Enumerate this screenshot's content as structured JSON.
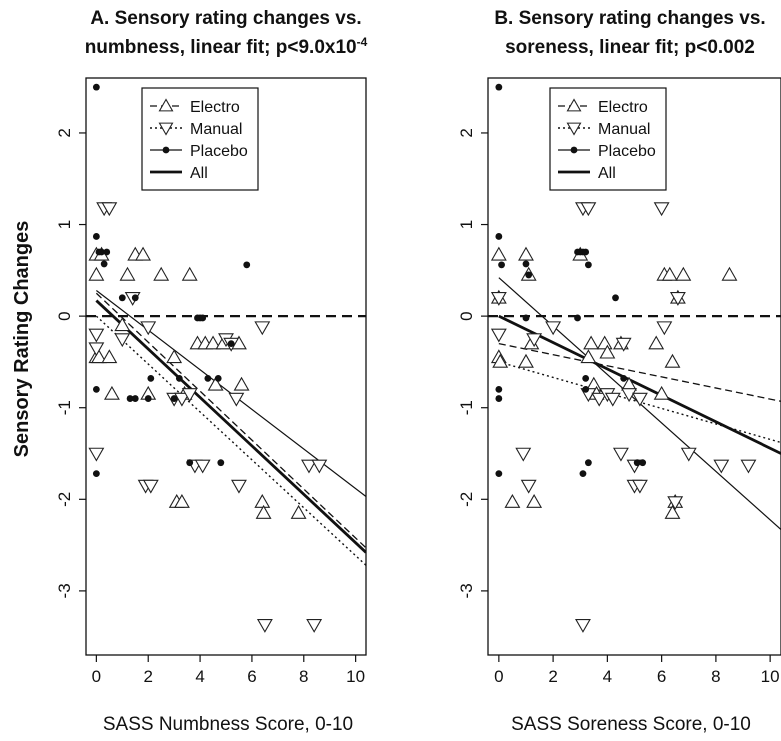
{
  "figure": {
    "ylabel": "Sensory Rating Changes"
  },
  "chart_data": [
    {
      "type": "scatter",
      "id": "A",
      "title_lines": [
        "A. Sensory rating changes vs.",
        "numbness, linear fit; p<9.0x10",
        "-4"
      ],
      "xlabel": "SASS Numbness Score, 0-10",
      "ylabel": "Sensory Rating Changes",
      "xlim": [
        -0.4,
        10.4
      ],
      "ylim": [
        -3.7,
        2.6
      ],
      "xticks": [
        0,
        2,
        4,
        6,
        8,
        10
      ],
      "yticks": [
        -3,
        -2,
        -1,
        0,
        1,
        2
      ],
      "xtick_labels": [
        "0",
        "2",
        "4",
        "6",
        "8",
        "10"
      ],
      "ytick_labels": [
        "-3",
        "-2",
        "-1",
        "0",
        "1",
        "2"
      ],
      "reference_line_y": 0,
      "legend": {
        "position": "top-center",
        "entries": [
          {
            "label": "Electro",
            "marker": "triangle-up",
            "line": "dashed"
          },
          {
            "label": "Manual",
            "marker": "triangle-down",
            "line": "dotted"
          },
          {
            "label": "Placebo",
            "marker": "dot",
            "line": "thin-solid"
          },
          {
            "label": "All",
            "marker": "none",
            "line": "thick-solid"
          }
        ]
      },
      "series": [
        {
          "name": "Electro",
          "marker": "triangle-up",
          "points": [
            [
              0,
              0.67
            ],
            [
              0,
              0.45
            ],
            [
              0,
              -0.45
            ],
            [
              0.1,
              -0.45
            ],
            [
              0.2,
              0.67
            ],
            [
              0.5,
              -0.45
            ],
            [
              0.6,
              -0.85
            ],
            [
              1.0,
              -0.1
            ],
            [
              1.2,
              0.45
            ],
            [
              1.5,
              0.67
            ],
            [
              1.8,
              0.67
            ],
            [
              2.0,
              -0.85
            ],
            [
              2.5,
              0.45
            ],
            [
              3.0,
              -0.45
            ],
            [
              3.1,
              -2.03
            ],
            [
              3.3,
              -2.03
            ],
            [
              3.4,
              -0.85
            ],
            [
              3.6,
              0.45
            ],
            [
              3.9,
              -0.3
            ],
            [
              4.2,
              -0.3
            ],
            [
              4.5,
              -0.3
            ],
            [
              4.6,
              -0.75
            ],
            [
              4.9,
              -0.3
            ],
            [
              5.5,
              -0.3
            ],
            [
              5.6,
              -0.75
            ],
            [
              6.4,
              -2.03
            ],
            [
              6.45,
              -2.15
            ],
            [
              7.8,
              -2.15
            ]
          ]
        },
        {
          "name": "Manual",
          "marker": "triangle-down",
          "points": [
            [
              0,
              -0.2
            ],
            [
              0,
              -0.35
            ],
            [
              0,
              -1.5
            ],
            [
              0.3,
              1.18
            ],
            [
              0.5,
              1.18
            ],
            [
              1.0,
              -0.25
            ],
            [
              1.4,
              0.2
            ],
            [
              1.9,
              -1.85
            ],
            [
              2.1,
              -1.85
            ],
            [
              2.0,
              -0.12
            ],
            [
              3.0,
              -0.9
            ],
            [
              3.3,
              -0.9
            ],
            [
              3.6,
              -0.85
            ],
            [
              3.8,
              -1.63
            ],
            [
              4.1,
              -1.63
            ],
            [
              5.0,
              -0.25
            ],
            [
              5.2,
              -0.3
            ],
            [
              5.4,
              -0.9
            ],
            [
              5.5,
              -1.85
            ],
            [
              6.4,
              -0.12
            ],
            [
              6.5,
              -3.37
            ],
            [
              8.2,
              -1.63
            ],
            [
              8.4,
              -3.37
            ],
            [
              8.6,
              -1.63
            ]
          ]
        },
        {
          "name": "Placebo",
          "marker": "dot",
          "points": [
            [
              0,
              2.5
            ],
            [
              0,
              0.87
            ],
            [
              0,
              -0.8
            ],
            [
              0,
              -1.72
            ],
            [
              0.1,
              0.7
            ],
            [
              0.2,
              0.7
            ],
            [
              0.3,
              0.57
            ],
            [
              0.4,
              0.7
            ],
            [
              1.0,
              0.2
            ],
            [
              1.3,
              -0.9
            ],
            [
              1.5,
              -0.9
            ],
            [
              1.5,
              0.2
            ],
            [
              2.0,
              -0.9
            ],
            [
              2.1,
              -0.68
            ],
            [
              3.0,
              -0.9
            ],
            [
              3.2,
              -0.68
            ],
            [
              3.6,
              -1.6
            ],
            [
              3.9,
              -0.02
            ],
            [
              4.0,
              -0.02
            ],
            [
              4.1,
              -0.02
            ],
            [
              4.3,
              -0.68
            ],
            [
              4.7,
              -0.68
            ],
            [
              4.8,
              -1.6
            ],
            [
              5.2,
              -0.3
            ],
            [
              5.8,
              0.56
            ]
          ]
        }
      ],
      "fits": [
        {
          "name": "Electro",
          "style": "dashed",
          "x": [
            0,
            10.4
          ],
          "y": [
            0.25,
            -2.53
          ]
        },
        {
          "name": "Manual",
          "style": "dotted",
          "x": [
            0,
            10.4
          ],
          "y": [
            0.0,
            -2.72
          ]
        },
        {
          "name": "Placebo",
          "style": "thin-solid",
          "x": [
            0,
            10.4
          ],
          "y": [
            0.28,
            -1.97
          ]
        },
        {
          "name": "All",
          "style": "thick-solid",
          "x": [
            0,
            10.4
          ],
          "y": [
            0.17,
            -2.58
          ]
        }
      ]
    },
    {
      "type": "scatter",
      "id": "B",
      "title_lines": [
        "B. Sensory rating changes vs.",
        "soreness, linear fit; p<0.002",
        ""
      ],
      "xlabel": "SASS Soreness Score, 0-10",
      "ylabel": "",
      "xlim": [
        -0.4,
        10.4
      ],
      "ylim": [
        -3.7,
        2.6
      ],
      "xticks": [
        0,
        2,
        4,
        6,
        8,
        10
      ],
      "yticks": [
        -3,
        -2,
        -1,
        0,
        1,
        2
      ],
      "xtick_labels": [
        "0",
        "2",
        "4",
        "6",
        "8",
        "10"
      ],
      "ytick_labels": [
        "-3",
        "-2",
        "-1",
        "0",
        "1",
        "2"
      ],
      "reference_line_y": 0,
      "legend": {
        "position": "top-center",
        "entries": [
          {
            "label": "Electro",
            "marker": "triangle-up",
            "line": "dashed"
          },
          {
            "label": "Manual",
            "marker": "triangle-down",
            "line": "dotted"
          },
          {
            "label": "Placebo",
            "marker": "dot",
            "line": "thin-solid"
          },
          {
            "label": "All",
            "marker": "none",
            "line": "thick-solid"
          }
        ]
      },
      "series": [
        {
          "name": "Electro",
          "marker": "triangle-up",
          "points": [
            [
              0,
              0.67
            ],
            [
              0,
              0.2
            ],
            [
              0,
              -0.45
            ],
            [
              0.05,
              -0.5
            ],
            [
              0.5,
              -2.03
            ],
            [
              1.0,
              0.67
            ],
            [
              1.1,
              0.45
            ],
            [
              1.3,
              -2.03
            ],
            [
              1.0,
              -0.5
            ],
            [
              1.2,
              -0.3
            ],
            [
              3.0,
              0.67
            ],
            [
              3.3,
              -0.45
            ],
            [
              3.4,
              -0.3
            ],
            [
              3.5,
              -0.75
            ],
            [
              3.6,
              -0.85
            ],
            [
              3.9,
              -0.3
            ],
            [
              4.0,
              -0.4
            ],
            [
              4.5,
              -0.3
            ],
            [
              4.8,
              -0.75
            ],
            [
              5.8,
              -0.3
            ],
            [
              6.0,
              -0.85
            ],
            [
              6.1,
              0.45
            ],
            [
              6.3,
              0.45
            ],
            [
              6.4,
              -0.5
            ],
            [
              6.5,
              -2.03
            ],
            [
              6.4,
              -2.15
            ],
            [
              6.8,
              0.45
            ],
            [
              8.5,
              0.45
            ],
            [
              6.6,
              0.2
            ]
          ]
        },
        {
          "name": "Manual",
          "marker": "triangle-down",
          "points": [
            [
              0,
              -0.2
            ],
            [
              0,
              0.2
            ],
            [
              0.9,
              -1.5
            ],
            [
              1.1,
              -1.85
            ],
            [
              1.3,
              -0.25
            ],
            [
              2.0,
              -0.12
            ],
            [
              3.1,
              1.18
            ],
            [
              3.3,
              1.18
            ],
            [
              3.1,
              -3.37
            ],
            [
              3.3,
              -0.85
            ],
            [
              3.7,
              -0.9
            ],
            [
              4.0,
              -0.85
            ],
            [
              4.2,
              -0.9
            ],
            [
              4.5,
              -1.5
            ],
            [
              4.6,
              -0.3
            ],
            [
              4.8,
              -0.85
            ],
            [
              5.0,
              -1.63
            ],
            [
              5.0,
              -1.85
            ],
            [
              5.2,
              -1.85
            ],
            [
              5.2,
              -0.9
            ],
            [
              6.0,
              1.18
            ],
            [
              6.1,
              -0.12
            ],
            [
              6.5,
              -2.03
            ],
            [
              6.6,
              0.2
            ],
            [
              7.0,
              -1.5
            ],
            [
              8.2,
              -1.63
            ],
            [
              9.2,
              -1.63
            ]
          ]
        },
        {
          "name": "Placebo",
          "marker": "dot",
          "points": [
            [
              0,
              2.5
            ],
            [
              0,
              0.87
            ],
            [
              0,
              -0.8
            ],
            [
              0,
              -0.9
            ],
            [
              0,
              -1.72
            ],
            [
              0.1,
              0.56
            ],
            [
              1.0,
              -0.02
            ],
            [
              1.0,
              0.57
            ],
            [
              1.1,
              0.45
            ],
            [
              2.9,
              -0.02
            ],
            [
              2.9,
              0.7
            ],
            [
              3.0,
              0.7
            ],
            [
              3.1,
              0.7
            ],
            [
              3.2,
              0.7
            ],
            [
              3.3,
              0.56
            ],
            [
              3.1,
              -1.72
            ],
            [
              3.3,
              -1.6
            ],
            [
              3.2,
              -0.68
            ],
            [
              3.2,
              -0.8
            ],
            [
              4.3,
              0.2
            ],
            [
              4.6,
              -0.68
            ],
            [
              5.1,
              -1.6
            ],
            [
              5.3,
              -1.6
            ]
          ]
        }
      ],
      "fits": [
        {
          "name": "Electro",
          "style": "dashed",
          "x": [
            0,
            10.4
          ],
          "y": [
            -0.3,
            -0.93
          ]
        },
        {
          "name": "Manual",
          "style": "dotted",
          "x": [
            0,
            10.4
          ],
          "y": [
            -0.5,
            -1.38
          ]
        },
        {
          "name": "Placebo",
          "style": "thin-solid",
          "x": [
            0,
            10.4
          ],
          "y": [
            0.42,
            -2.33
          ]
        },
        {
          "name": "All",
          "style": "thick-solid",
          "x": [
            0,
            10.4
          ],
          "y": [
            0.0,
            -1.5
          ]
        }
      ]
    }
  ]
}
